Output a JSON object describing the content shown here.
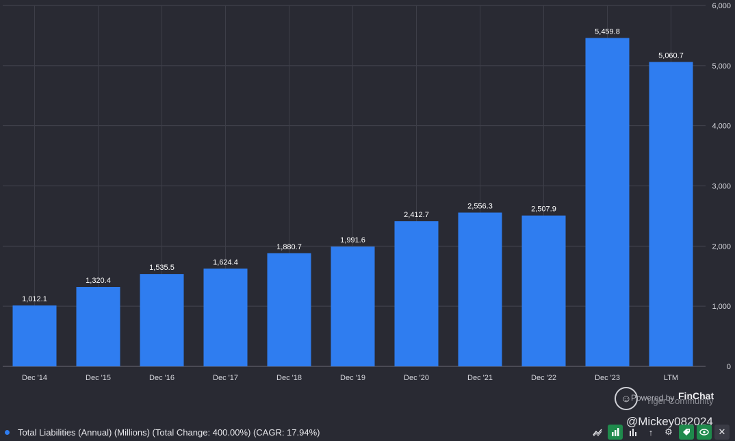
{
  "chart_data": {
    "type": "bar",
    "categories": [
      "Dec '14",
      "Dec '15",
      "Dec '16",
      "Dec '17",
      "Dec '18",
      "Dec '19",
      "Dec '20",
      "Dec '21",
      "Dec '22",
      "Dec '23",
      "LTM"
    ],
    "values": [
      1012.1,
      1320.4,
      1535.5,
      1624.4,
      1880.7,
      1991.6,
      2412.7,
      2556.3,
      2507.9,
      5459.8,
      5060.7
    ],
    "data_labels": [
      "1,012.1",
      "1,320.4",
      "1,535.5",
      "1,624.4",
      "1,880.7",
      "1,991.6",
      "2,412.7",
      "2,556.3",
      "2,507.9",
      "5,459.8",
      "5,060.7"
    ],
    "yticks": [
      0,
      1000,
      2000,
      3000,
      4000,
      5000,
      6000
    ],
    "ytick_labels": [
      "0",
      "1,000",
      "2,000",
      "3,000",
      "4,000",
      "5,000",
      "6,000"
    ],
    "ylim": [
      0,
      6000
    ],
    "grid": true,
    "y_axis_side": "right",
    "bar_color": "#2f7df0",
    "legend": "Total Liabilities (Annual) (Millions) (Total Change: 400.00%) (CAGR: 17.94%)"
  },
  "branding": {
    "powered_by": "Powered by",
    "provider": "FinChat",
    "watermark": "Tiger Community",
    "handle": "@Mickey082024"
  },
  "toolbar": {
    "icons": [
      "line-chart-icon",
      "bar-chart-icon",
      "column-chart-icon",
      "sort-icon",
      "gear-icon",
      "tag-icon",
      "eye-icon",
      "close-icon"
    ]
  }
}
